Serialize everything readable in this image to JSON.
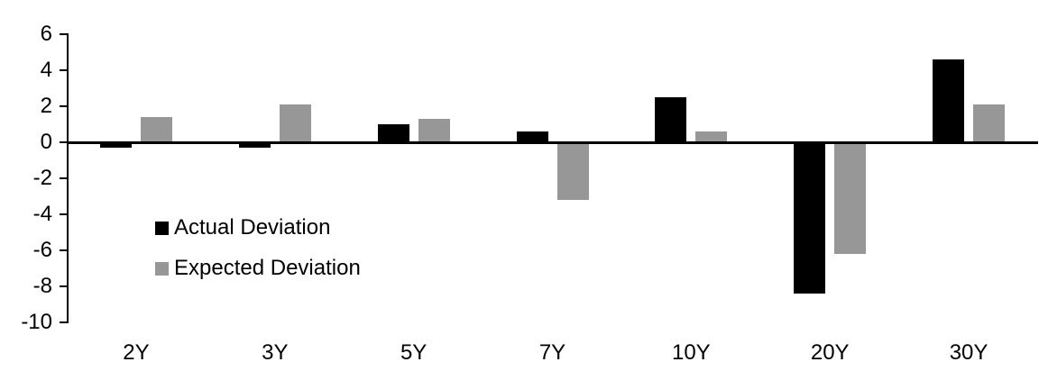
{
  "chart_data": {
    "type": "bar",
    "title": "",
    "categories": [
      "2Y",
      "3Y",
      "5Y",
      "7Y",
      "10Y",
      "20Y",
      "30Y"
    ],
    "series": [
      {
        "name": "Actual Deviation",
        "color": "#000000",
        "values": [
          -0.3,
          -0.3,
          1.0,
          0.6,
          2.5,
          -8.4,
          4.6
        ]
      },
      {
        "name": "Expected Deviation",
        "color": "#979797",
        "values": [
          1.4,
          2.1,
          1.3,
          -3.2,
          0.6,
          -6.2,
          2.1
        ]
      }
    ],
    "xlabel": "",
    "ylabel": "",
    "ylim": [
      -10,
      6
    ],
    "y_ticks": [
      6,
      4,
      2,
      0,
      -2,
      -4,
      -6,
      -8,
      -10
    ],
    "grid": false,
    "legend_position": "inside-left",
    "background_color": "#ffffff",
    "axis_color": "#000000"
  }
}
